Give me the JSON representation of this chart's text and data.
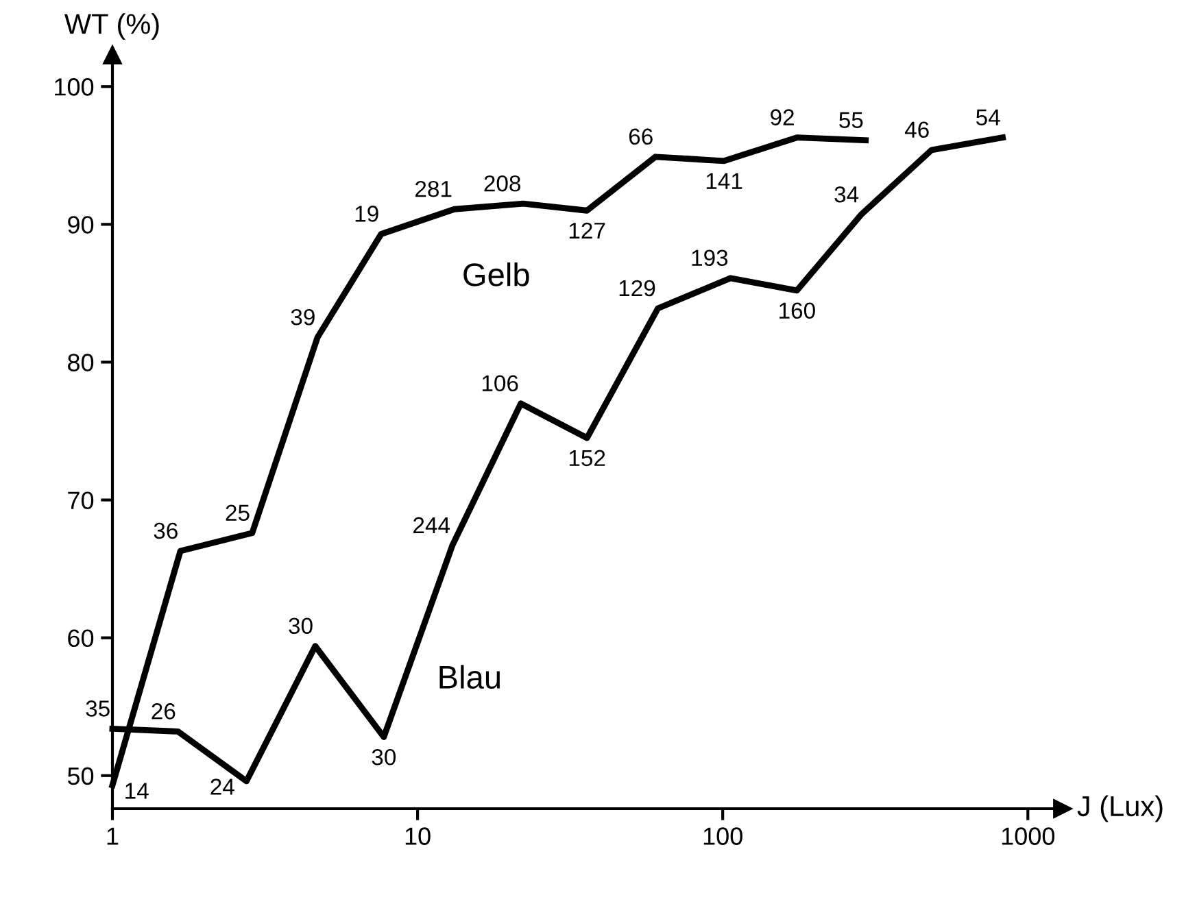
{
  "chart_data": {
    "type": "line",
    "xlabel": "J (Lux)",
    "ylabel": "WT (%)",
    "log": "x",
    "xlim": [
      1,
      1300
    ],
    "xticks": [
      1,
      10,
      100,
      1000
    ],
    "ylim": [
      47.6,
      102.3
    ],
    "yticks": [
      50,
      60,
      70,
      80,
      90,
      100
    ],
    "grid": false,
    "legend": false,
    "marker": "none",
    "line_style": "solid",
    "series": [
      {
        "name": "Gelb",
        "color": "#000000",
        "x": [
          1,
          1.67,
          2.87,
          4.7,
          7.6,
          13.2,
          22.2,
          35.9,
          60.2,
          101,
          175,
          294
        ],
        "values": [
          49.3,
          66.3,
          67.6,
          81.8,
          89.3,
          91.1,
          91.5,
          91.0,
          94.9,
          94.6,
          96.3,
          96.1
        ]
      },
      {
        "name": "Blau",
        "color": "#000000",
        "x": [
          1,
          1.64,
          2.75,
          4.62,
          7.75,
          13.0,
          21.8,
          35.9,
          61.3,
          106,
          175,
          284,
          484,
          827
        ],
        "values": [
          53.4,
          53.2,
          49.6,
          59.4,
          52.8,
          66.7,
          77.0,
          74.5,
          83.9,
          86.1,
          85.2,
          90.7,
          95.4,
          96.3
        ]
      }
    ],
    "annotations": [
      {
        "text": "14",
        "x": 1,
        "y": 49.3
      },
      {
        "text": "36",
        "x": 1.67,
        "y": 66.3
      },
      {
        "text": "25",
        "x": 2.87,
        "y": 67.6
      },
      {
        "text": "39",
        "x": 4.7,
        "y": 81.8
      },
      {
        "text": "19",
        "x": 7.6,
        "y": 89.3
      },
      {
        "text": "281",
        "x": 13.2,
        "y": 91.1
      },
      {
        "text": "208",
        "x": 22.2,
        "y": 91.5
      },
      {
        "text": "127",
        "x": 35.9,
        "y": 91.0
      },
      {
        "text": "66",
        "x": 60.2,
        "y": 94.9
      },
      {
        "text": "141",
        "x": 101,
        "y": 94.6
      },
      {
        "text": "92",
        "x": 175,
        "y": 96.3
      },
      {
        "text": "55",
        "x": 294,
        "y": 96.1
      },
      {
        "text": "35",
        "x": 1,
        "y": 53.4
      },
      {
        "text": "26",
        "x": 1.64,
        "y": 53.2
      },
      {
        "text": "24",
        "x": 2.75,
        "y": 49.6
      },
      {
        "text": "30",
        "x": 4.62,
        "y": 59.4
      },
      {
        "text": "30",
        "x": 7.75,
        "y": 52.8
      },
      {
        "text": "244",
        "x": 13.0,
        "y": 66.7
      },
      {
        "text": "106",
        "x": 21.8,
        "y": 77.0
      },
      {
        "text": "152",
        "x": 35.9,
        "y": 74.5
      },
      {
        "text": "129",
        "x": 61.3,
        "y": 83.9
      },
      {
        "text": "193",
        "x": 106,
        "y": 86.1
      },
      {
        "text": "160",
        "x": 175,
        "y": 85.2
      },
      {
        "text": "34",
        "x": 284,
        "y": 90.7
      },
      {
        "text": "46",
        "x": 484,
        "y": 95.4
      },
      {
        "text": "54",
        "x": 827,
        "y": 96.3
      }
    ]
  }
}
